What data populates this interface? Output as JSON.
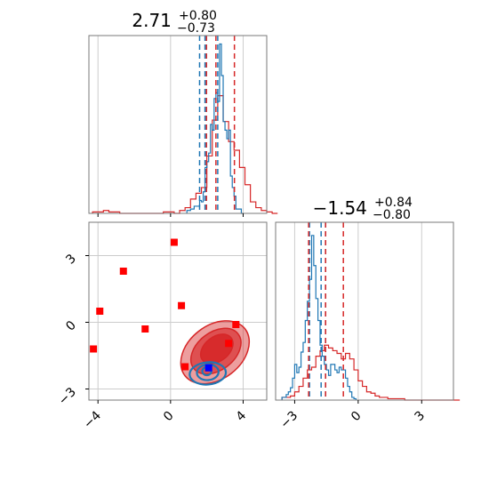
{
  "chart_data": {
    "type": "corner",
    "titles": [
      {
        "value": "2.71",
        "plus": "+0.80",
        "minus": "−0.73"
      },
      {
        "value": "−1.54",
        "plus": "+0.84",
        "minus": "−0.80"
      }
    ],
    "colors": {
      "blue": "#1f77b4",
      "red": "#d62728",
      "grid": "#cccccc",
      "axes": "#7a7a7a"
    },
    "hist_top": {
      "xlim": [
        -4.5,
        5.3
      ],
      "blue_quantiles": [
        1.6,
        2.6,
        1.9
      ],
      "red_quantiles": [
        1.98,
        3.52,
        2.5
      ],
      "blue_steps": {
        "start": 0.9,
        "width": 0.1,
        "counts": [
          2,
          2,
          3,
          3,
          5,
          5,
          5,
          9,
          8,
          15,
          32,
          36,
          42,
          62,
          58,
          80,
          84,
          78,
          118,
          96,
          64,
          58,
          52,
          58,
          26,
          18,
          12,
          3,
          3,
          3,
          0
        ]
      },
      "red_steps": {
        "start": -4.3,
        "width": 0.3,
        "counts": [
          1,
          1,
          2,
          1,
          1,
          0,
          0,
          0,
          0,
          0,
          0,
          0,
          0,
          1,
          1,
          0,
          2,
          4,
          10,
          14,
          18,
          40,
          65,
          82,
          64,
          50,
          44,
          32,
          20,
          8,
          4,
          2,
          1,
          0
        ]
      }
    },
    "hist_right": {
      "xlim": [
        -3.9,
        4.5
      ],
      "ticks": [
        -3,
        0,
        3
      ],
      "tick_labels": [
        "−3",
        "0",
        "3"
      ],
      "blue_quantiles": [
        -2.3,
        -1.75,
        -1.54
      ],
      "red_quantiles": [
        -2.34,
        -0.7,
        -1.54
      ],
      "blue_steps": {
        "start": -3.6,
        "width": 0.1,
        "counts": [
          2,
          2,
          4,
          6,
          9,
          16,
          26,
          20,
          24,
          35,
          42,
          58,
          72,
          88,
          120,
          98,
          74,
          58,
          40,
          32,
          26,
          22,
          18,
          26,
          26,
          22,
          20,
          24,
          22,
          22,
          16,
          10,
          6,
          2,
          1
        ]
      },
      "red_steps": {
        "start": -3.6,
        "width": 0.2,
        "counts": [
          2,
          2,
          3,
          6,
          10,
          16,
          22,
          24,
          32,
          36,
          40,
          38,
          36,
          34,
          30,
          34,
          30,
          22,
          14,
          10,
          6,
          5,
          3,
          2,
          2,
          1,
          1,
          1,
          1,
          0,
          0,
          0,
          0,
          0,
          0,
          0,
          0,
          0,
          0,
          0,
          0,
          0
        ]
      }
    },
    "scatter_panel": {
      "xlim": [
        -4.5,
        5.3
      ],
      "ylim": [
        -3.5,
        4.5
      ],
      "x_ticks": [
        -4,
        0,
        4
      ],
      "x_tick_labels": [
        "−4",
        "0",
        "4"
      ],
      "y_ticks": [
        -3,
        0,
        3
      ],
      "y_tick_labels": [
        "−3",
        "0",
        "3"
      ],
      "red_squares": [
        [
          -4.25,
          -1.2
        ],
        [
          -3.9,
          0.5
        ],
        [
          -2.6,
          2.3
        ],
        [
          -1.4,
          -0.3
        ],
        [
          0.2,
          3.6
        ],
        [
          0.6,
          0.75
        ],
        [
          0.8,
          -2.0
        ],
        [
          3.2,
          -0.95
        ],
        [
          3.6,
          -0.1
        ]
      ],
      "blue_square": [
        2.1,
        -2.05
      ],
      "red_contours": [
        {
          "cx": 2.45,
          "cy": -1.35,
          "rx": 2.1,
          "ry": 1.2,
          "rot": -38,
          "opacity": 0.45
        },
        {
          "cx": 2.5,
          "cy": -1.3,
          "rx": 1.55,
          "ry": 0.85,
          "rot": -38,
          "opacity": 0.65
        },
        {
          "cx": 2.55,
          "cy": -1.2,
          "rx": 1.0,
          "ry": 0.55,
          "rot": -38,
          "opacity": 0.9
        }
      ],
      "blue_contours": [
        {
          "cx": 2.05,
          "cy": -2.3,
          "rx": 1.0,
          "ry": 0.5,
          "rot": -5
        },
        {
          "cx": 2.05,
          "cy": -2.25,
          "rx": 0.6,
          "ry": 0.35,
          "rot": -5
        },
        {
          "cx": 2.0,
          "cy": -2.2,
          "rx": 0.25,
          "ry": 0.18,
          "rot": 0
        }
      ]
    }
  }
}
